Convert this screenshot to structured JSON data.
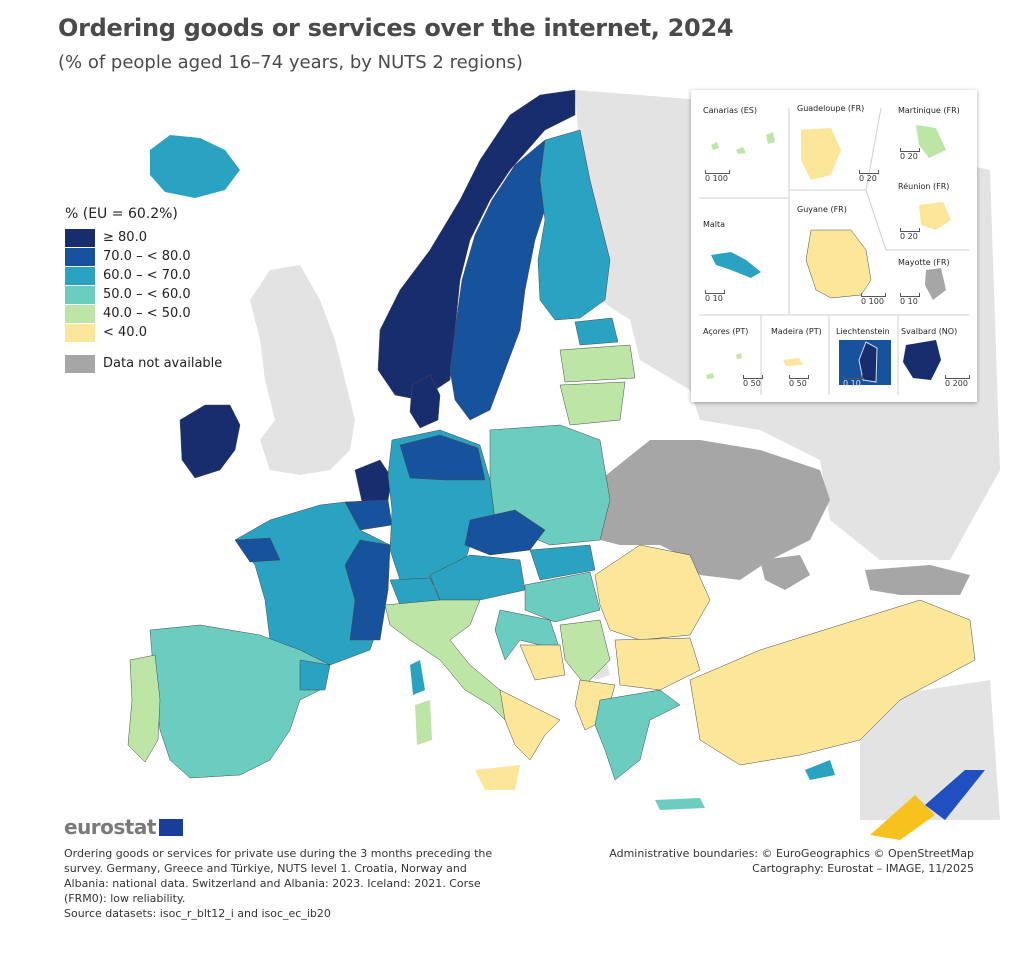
{
  "title": "Ordering goods or services over the internet, 2024",
  "subtitle": "(% of people aged 16–74 years, by NUTS 2 regions)",
  "legend": {
    "title": "% (EU = 60.2%)",
    "classes": [
      {
        "label": "≥ 80.0",
        "color": "#182d6e"
      },
      {
        "label": "70.0 – < 80.0",
        "color": "#17529c"
      },
      {
        "label": "60.0 – < 70.0",
        "color": "#2aa3c2"
      },
      {
        "label": "50.0 – < 60.0",
        "color": "#6acdc0"
      },
      {
        "label": "40.0 – < 50.0",
        "color": "#bde5a5"
      },
      {
        "label": "< 40.0",
        "color": "#fbe69a"
      }
    ],
    "na": {
      "label": "Data not available",
      "color": "#a6a6a6"
    }
  },
  "insets": [
    {
      "name": "Canarias (ES)",
      "scale": "0  100"
    },
    {
      "name": "Guadeloupe (FR)",
      "scale": "0  20"
    },
    {
      "name": "Martinique (FR)",
      "scale": "0  20"
    },
    {
      "name": "Réunion (FR)",
      "scale": "0  20"
    },
    {
      "name": "Malta",
      "scale": "0  10"
    },
    {
      "name": "Guyane (FR)",
      "scale": "0  100"
    },
    {
      "name": "Mayotte (FR)",
      "scale": "0  10"
    },
    {
      "name": "Açores (PT)",
      "scale": "0  50"
    },
    {
      "name": "Madeira (PT)",
      "scale": "0  50"
    },
    {
      "name": "Liechtenstein",
      "scale": "0  10"
    },
    {
      "name": "Svalbard (NO)",
      "scale": "0  200"
    }
  ],
  "logo": "eurostat",
  "notes": "Ordering goods or services for private use during the 3 months preceding the survey. Germany, Greece and Türkiye, NUTS level 1. Croatia, Norway and Albania: national data. Switzerland and Albania: 2023. Iceland: 2021. Corse (FRM0): low reliability.",
  "source": "Source datasets: isoc_r_blt12_i and isoc_ec_ib20",
  "credits": {
    "boundaries": "Administrative boundaries: © EuroGeographics © OpenStreetMap",
    "cartography": "Cartography: Eurostat – IMAGE, 11/2025"
  },
  "colors": {
    "non_eu": "#e3e3e3",
    "sea": "#ffffff",
    "border": "#4a4a4a"
  }
}
